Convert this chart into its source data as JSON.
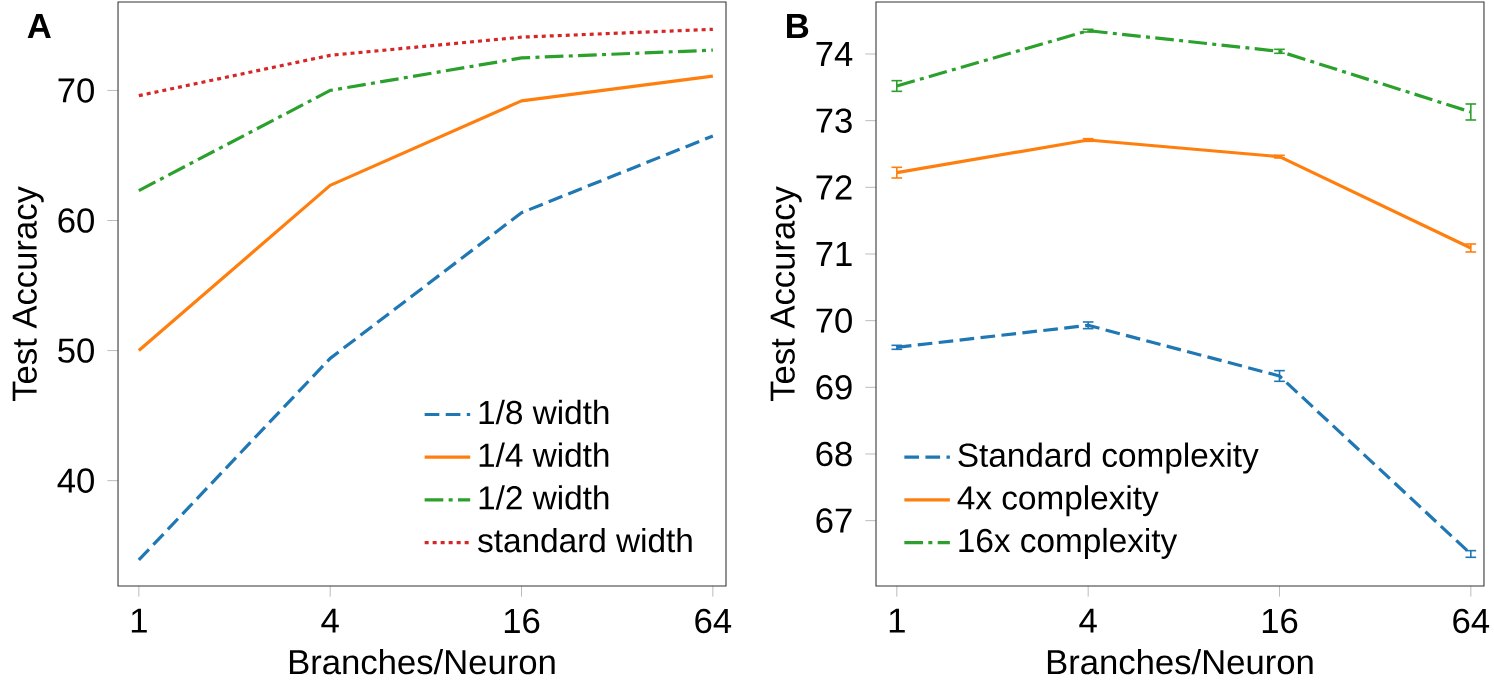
{
  "chart_data": [
    {
      "type": "line",
      "annotations": [
        "A"
      ],
      "xlabel": "Branches/Neuron",
      "ylabel": "Test Accuracy",
      "log": "x",
      "x": [
        1,
        4,
        16,
        64
      ],
      "xlim": [
        0.86,
        70.4
      ],
      "xticks": [
        1,
        4,
        16,
        64
      ],
      "ylim": [
        31.9,
        76.8
      ],
      "yticks": [
        40,
        50,
        60,
        70
      ],
      "legend": "bottom right",
      "series": [
        {
          "name": "1/8 width",
          "color": "#1f77b4",
          "line_style": "dashed",
          "values": [
            33.9,
            49.4,
            60.6,
            66.5
          ]
        },
        {
          "name": "1/4 width",
          "color": "#ff7f0e",
          "line_style": "solid",
          "values": [
            50.0,
            62.7,
            69.2,
            71.1
          ]
        },
        {
          "name": "1/2 width",
          "color": "#2ca02c",
          "line_style": "dashdot",
          "values": [
            62.3,
            70.0,
            72.5,
            73.1
          ]
        },
        {
          "name": "standard width",
          "color": "#d62728",
          "line_style": "dotted",
          "values": [
            69.6,
            72.7,
            74.1,
            74.7
          ]
        }
      ]
    },
    {
      "type": "line",
      "annotations": [
        "B"
      ],
      "xlabel": "Branches/Neuron",
      "ylabel": "Test Accuracy",
      "log": "x",
      "x": [
        1,
        4,
        16,
        64
      ],
      "xlim": [
        0.86,
        70.4
      ],
      "xticks": [
        1,
        4,
        16,
        64
      ],
      "ylim": [
        66.02,
        74.78
      ],
      "yticks": [
        67,
        68,
        69,
        70,
        71,
        72,
        73,
        74
      ],
      "legend": "bottom left",
      "series": [
        {
          "name": "Standard complexity",
          "color": "#1f77b4",
          "line_style": "dashed",
          "values": [
            69.6,
            69.93,
            69.17,
            66.5
          ],
          "errors": [
            0.03,
            0.05,
            0.08,
            0.05
          ]
        },
        {
          "name": "4x complexity",
          "color": "#ff7f0e",
          "line_style": "solid",
          "values": [
            72.22,
            72.71,
            72.46,
            71.09
          ],
          "errors": [
            0.08,
            0.02,
            0.02,
            0.06
          ]
        },
        {
          "name": "16x complexity",
          "color": "#2ca02c",
          "line_style": "dashdot",
          "values": [
            73.52,
            74.35,
            74.04,
            73.13
          ],
          "errors": [
            0.08,
            0.02,
            0.03,
            0.12
          ]
        }
      ]
    }
  ]
}
